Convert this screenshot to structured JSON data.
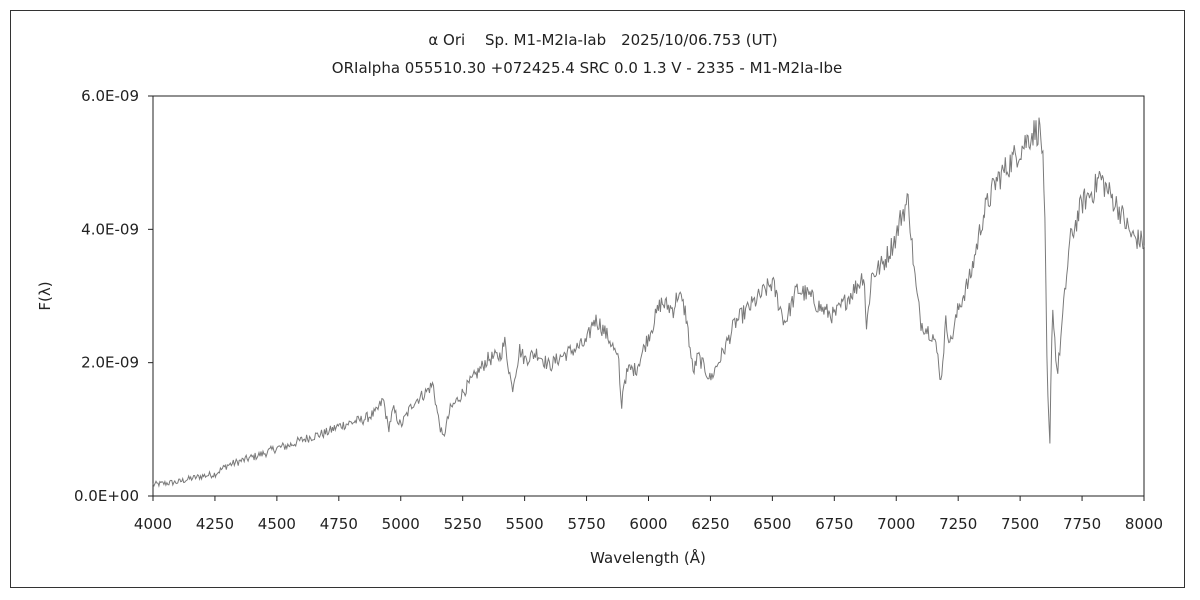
{
  "chart_data": {
    "type": "line",
    "title": "α Ori　 Sp. M1-M2Ia-Iab　2025/10/06.753 (UT)",
    "subtitle": "ORIalpha 055510.30 +072425.4 SRC 0.0 1.3 V - 2335 - M1-M2Ia-Ibe",
    "xlabel": "Wavelength (Å)",
    "ylabel": "F(λ)",
    "xlim": [
      4000,
      8000
    ],
    "ylim": [
      0,
      6e-09
    ],
    "xticks": [
      "4000",
      "4250",
      "4500",
      "4750",
      "5000",
      "5250",
      "5500",
      "5750",
      "6000",
      "6250",
      "6500",
      "6750",
      "7000",
      "7250",
      "7500",
      "7750",
      "8000"
    ],
    "yticks": [
      "0.0E+00",
      "2.0E-09",
      "4.0E-09",
      "6.0E-09"
    ],
    "grid": false,
    "line_color": "#7a7a7a",
    "series": [
      {
        "x": [
          4000,
          4050,
          4100,
          4150,
          4200,
          4250,
          4300,
          4350,
          4400,
          4450,
          4500,
          4550,
          4600,
          4650,
          4700,
          4750,
          4800,
          4850,
          4900,
          4930,
          4950,
          4970,
          5000,
          5050,
          5100,
          5130,
          5150,
          5170,
          5200,
          5250,
          5300,
          5350,
          5400,
          5420,
          5450,
          5480,
          5500,
          5550,
          5600,
          5650,
          5700,
          5750,
          5780,
          5800,
          5850,
          5880,
          5890,
          5900,
          5920,
          5950,
          6000,
          6050,
          6100,
          6120,
          6150,
          6180,
          6200,
          6250,
          6300,
          6350,
          6400,
          6450,
          6500,
          6550,
          6600,
          6650,
          6700,
          6750,
          6800,
          6850,
          6870,
          6880,
          6900,
          6950,
          7000,
          7020,
          7050,
          7060,
          7080,
          7100,
          7150,
          7170,
          7180,
          7200,
          7220,
          7250,
          7300,
          7350,
          7400,
          7450,
          7500,
          7550,
          7580,
          7590,
          7600,
          7610,
          7620,
          7630,
          7650,
          7700,
          7750,
          7800,
          7820,
          7850,
          7900,
          7950,
          8000
        ],
        "y": [
          1.7e-10,
          1.9e-10,
          2.1e-10,
          2.6e-10,
          3e-10,
          3.3e-10,
          4.6e-10,
          5.2e-10,
          5.8e-10,
          6.4e-10,
          7.2e-10,
          7.6e-10,
          8.4e-10,
          9e-10,
          9.5e-10,
          1.05e-09,
          1.1e-09,
          1.15e-09,
          1.25e-09,
          1.45e-09,
          1e-09,
          1.3e-09,
          1.05e-09,
          1.4e-09,
          1.55e-09,
          1.68e-09,
          1.2e-09,
          8.5e-10,
          1.3e-09,
          1.55e-09,
          1.8e-09,
          2.05e-09,
          2.1e-09,
          2.3e-09,
          1.6e-09,
          2.2e-09,
          2.05e-09,
          2.15e-09,
          1.95e-09,
          2.1e-09,
          2.2e-09,
          2.3e-09,
          2.65e-09,
          2.6e-09,
          2.3e-09,
          2e-09,
          1.3e-09,
          1.7e-09,
          1.9e-09,
          1.9e-09,
          2.4e-09,
          2.9e-09,
          2.8e-09,
          3.05e-09,
          2.75e-09,
          1.85e-09,
          2.1e-09,
          1.75e-09,
          2.15e-09,
          2.6e-09,
          2.8e-09,
          3e-09,
          3.2e-09,
          2.6e-09,
          3.1e-09,
          3e-09,
          2.8e-09,
          2.7e-09,
          2.95e-09,
          3.2e-09,
          3.35e-09,
          2.5e-09,
          3.3e-09,
          3.5e-09,
          3.9e-09,
          4.2e-09,
          4.45e-09,
          3.9e-09,
          3.1e-09,
          2.6e-09,
          2.4e-09,
          2.05e-09,
          1.7e-09,
          2.6e-09,
          2.3e-09,
          2.8e-09,
          3.3e-09,
          4.2e-09,
          4.7e-09,
          4.95e-09,
          5.2e-09,
          5.45e-09,
          5.5e-09,
          5.2e-09,
          4e-09,
          1.6e-09,
          7.5e-10,
          2.9e-09,
          1.8e-09,
          3.8e-09,
          4.4e-09,
          4.6e-09,
          4.8e-09,
          4.6e-09,
          4.3e-09,
          3.9e-09,
          3.8e-09
        ]
      }
    ]
  }
}
